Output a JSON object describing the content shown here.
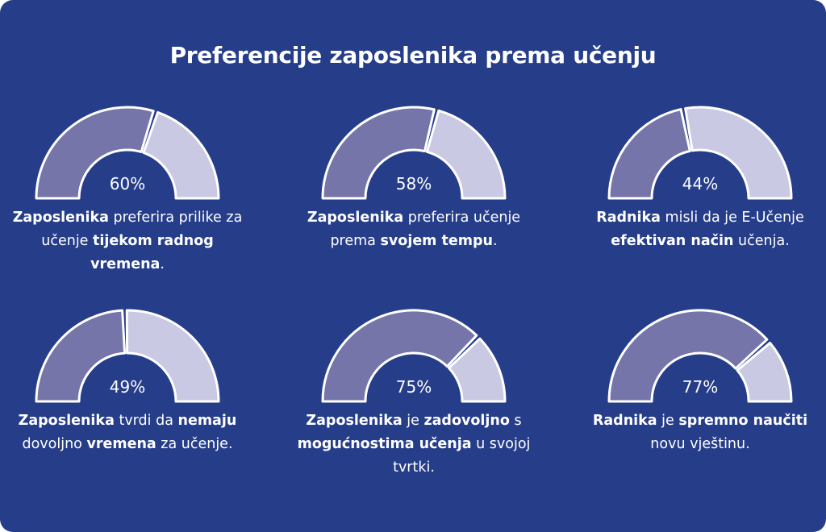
{
  "title": "Preferencije zaposlenika prema učenju",
  "colors": {
    "background": "#263d8a",
    "filled": "#7675a9",
    "remaining": "#cac9e3",
    "text": "#ffffff"
  },
  "chart_data": [
    {
      "type": "gauge",
      "value": 60,
      "label": "60%",
      "caption": [
        {
          "text": "Zaposlenika",
          "bold": true
        },
        {
          "text": " preferira prilike za učenje ",
          "bold": false
        },
        {
          "text": "tijekom radnog vremena",
          "bold": true
        },
        {
          "text": ".",
          "bold": false
        }
      ]
    },
    {
      "type": "gauge",
      "value": 58,
      "label": "58%",
      "caption": [
        {
          "text": "Zaposlenika",
          "bold": true
        },
        {
          "text": " preferira učenje prema ",
          "bold": false
        },
        {
          "text": "svojem tempu",
          "bold": true
        },
        {
          "text": ".",
          "bold": false
        }
      ]
    },
    {
      "type": "gauge",
      "value": 44,
      "label": "44%",
      "caption": [
        {
          "text": "Radnika",
          "bold": true
        },
        {
          "text": " misli da je E-Učenje ",
          "bold": false
        },
        {
          "text": "efektivan način",
          "bold": true
        },
        {
          "text": " učenja.",
          "bold": false
        }
      ]
    },
    {
      "type": "gauge",
      "value": 49,
      "label": "49%",
      "caption": [
        {
          "text": "Zaposlenika",
          "bold": true
        },
        {
          "text": " tvrdi da ",
          "bold": false
        },
        {
          "text": "nemaju",
          "bold": true
        },
        {
          "text": " dovoljno ",
          "bold": false
        },
        {
          "text": "vremena",
          "bold": true
        },
        {
          "text": " za učenje.",
          "bold": false
        }
      ]
    },
    {
      "type": "gauge",
      "value": 75,
      "label": "75%",
      "caption": [
        {
          "text": "Zaposlenika",
          "bold": true
        },
        {
          "text": " je ",
          "bold": false
        },
        {
          "text": "zadovoljno",
          "bold": true
        },
        {
          "text": " s ",
          "bold": false
        },
        {
          "text": "mogućnostima učenja",
          "bold": true
        },
        {
          "text": " u svojoj tvrtki.",
          "bold": false
        }
      ]
    },
    {
      "type": "gauge",
      "value": 77,
      "label": "77%",
      "caption": [
        {
          "text": "Radnika",
          "bold": true
        },
        {
          "text": " je ",
          "bold": false
        },
        {
          "text": "spremno naučiti",
          "bold": true
        },
        {
          "text": " novu vještinu.",
          "bold": false
        }
      ]
    }
  ]
}
